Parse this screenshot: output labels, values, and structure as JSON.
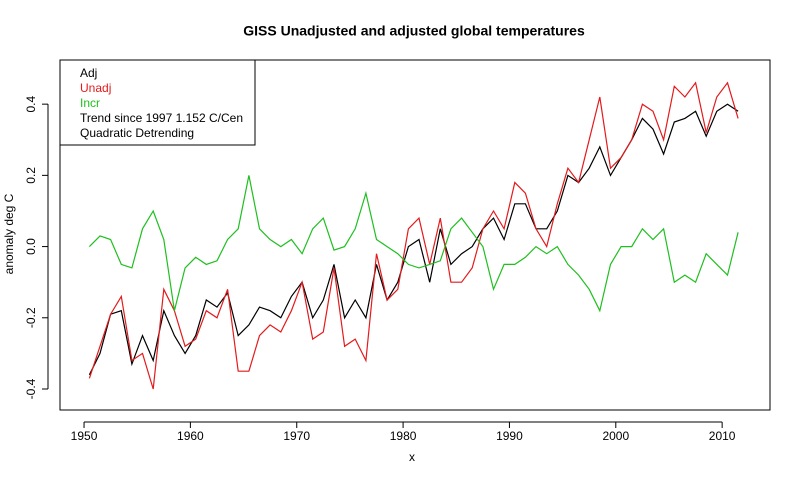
{
  "chart_data": {
    "type": "line",
    "title": "GISS Unadjusted and adjusted global temperatures",
    "x_label": "x",
    "y_label": "anomaly deg C",
    "x": [
      1950.5,
      1951.5,
      1952.5,
      1953.5,
      1954.5,
      1955.5,
      1956.5,
      1957.5,
      1958.5,
      1959.5,
      1960.5,
      1961.5,
      1962.5,
      1963.5,
      1964.5,
      1965.5,
      1966.5,
      1967.5,
      1968.5,
      1969.5,
      1970.5,
      1971.5,
      1972.5,
      1973.5,
      1974.5,
      1975.5,
      1976.5,
      1977.5,
      1978.5,
      1979.5,
      1980.5,
      1981.5,
      1982.5,
      1983.5,
      1984.5,
      1985.5,
      1986.5,
      1987.5,
      1988.5,
      1989.5,
      1990.5,
      1991.5,
      1992.5,
      1993.5,
      1994.5,
      1995.5,
      1996.5,
      1997.5,
      1998.5,
      1999.5,
      2000.5,
      2001.5,
      2002.5,
      2003.5,
      2004.5,
      2005.5,
      2006.5,
      2007.5,
      2008.5,
      2009.5,
      2010.5,
      2011.5
    ],
    "series": [
      {
        "name": "Adj",
        "color": "#000000",
        "values": [
          -0.36,
          -0.3,
          -0.19,
          -0.18,
          -0.33,
          -0.25,
          -0.32,
          -0.18,
          -0.25,
          -0.3,
          -0.25,
          -0.15,
          -0.17,
          -0.13,
          -0.25,
          -0.22,
          -0.17,
          -0.18,
          -0.2,
          -0.14,
          -0.1,
          -0.2,
          -0.15,
          -0.05,
          -0.2,
          -0.15,
          -0.2,
          -0.05,
          -0.15,
          -0.1,
          0.0,
          0.02,
          -0.1,
          0.05,
          -0.05,
          -0.02,
          0.0,
          0.05,
          0.08,
          0.02,
          0.12,
          0.12,
          0.05,
          0.05,
          0.1,
          0.2,
          0.18,
          0.22,
          0.28,
          0.2,
          0.25,
          0.3,
          0.36,
          0.33,
          0.26,
          0.35,
          0.36,
          0.38,
          0.31,
          0.38,
          0.4,
          0.38
        ]
      },
      {
        "name": "Unadj",
        "color": "#e41a1c",
        "values": [
          -0.37,
          -0.28,
          -0.19,
          -0.14,
          -0.32,
          -0.3,
          -0.4,
          -0.12,
          -0.18,
          -0.28,
          -0.26,
          -0.18,
          -0.2,
          -0.12,
          -0.35,
          -0.35,
          -0.25,
          -0.22,
          -0.24,
          -0.18,
          -0.1,
          -0.26,
          -0.24,
          -0.06,
          -0.28,
          -0.26,
          -0.32,
          -0.02,
          -0.15,
          -0.12,
          0.05,
          0.08,
          -0.05,
          0.08,
          -0.1,
          -0.1,
          -0.06,
          0.05,
          0.1,
          0.05,
          0.18,
          0.15,
          0.05,
          0.0,
          0.12,
          0.22,
          0.18,
          0.3,
          0.42,
          0.22,
          0.25,
          0.3,
          0.4,
          0.38,
          0.3,
          0.45,
          0.42,
          0.46,
          0.32,
          0.42,
          0.46,
          0.36
        ]
      },
      {
        "name": "Incr",
        "color": "#1fbf1f",
        "values": [
          0.0,
          0.03,
          0.02,
          -0.05,
          -0.06,
          0.05,
          0.1,
          0.02,
          -0.18,
          -0.06,
          -0.03,
          -0.05,
          -0.04,
          0.02,
          0.05,
          0.2,
          0.05,
          0.02,
          0.0,
          0.02,
          -0.02,
          0.05,
          0.08,
          -0.01,
          0.0,
          0.05,
          0.15,
          0.02,
          0.0,
          -0.02,
          -0.05,
          -0.06,
          -0.05,
          -0.04,
          0.05,
          0.08,
          0.04,
          0.0,
          -0.12,
          -0.05,
          -0.05,
          -0.03,
          0.0,
          -0.02,
          0.0,
          -0.05,
          -0.08,
          -0.12,
          -0.18,
          -0.05,
          0.0,
          0.0,
          0.05,
          0.02,
          0.05,
          -0.1,
          -0.08,
          -0.1,
          -0.02,
          -0.05,
          -0.08,
          0.04
        ]
      }
    ],
    "legend_notes": [
      "Trend since 1997 1.152 C/Cen",
      "Quadratic Detrending"
    ],
    "legend": "top-left",
    "xlim": [
      1947.74,
      2014.5
    ],
    "xticks": [
      1950,
      1960,
      1970,
      1980,
      1990,
      2000,
      2010
    ],
    "ylim": [
      -0.459,
      0.524
    ],
    "yticks": [
      -0.4,
      -0.2,
      {
        "value": 0,
        "label": "0.0"
      },
      0.2,
      0.4
    ],
    "grid": false
  }
}
